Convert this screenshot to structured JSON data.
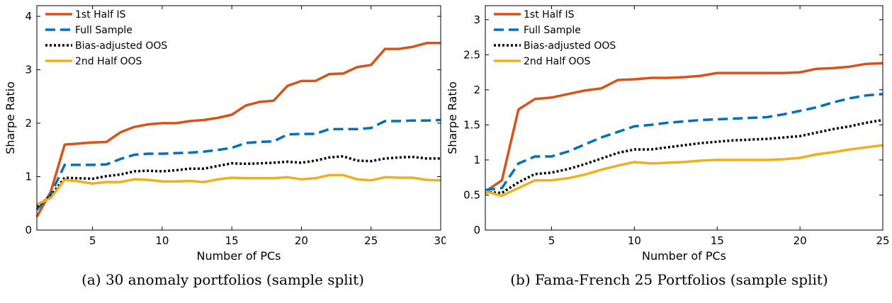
{
  "colors": {
    "first_half_is": "#D95319",
    "full_sample": "#0072BD",
    "bias_adjusted_oos": "#000000",
    "second_half_oos": "#EDB120"
  },
  "chart_data": [
    {
      "type": "line",
      "caption": "(a) 30 anomaly portfolios (sample split)",
      "xlabel": "Number of PCs",
      "ylabel": "Sharpe Ratio",
      "xlim": [
        1,
        30
      ],
      "ylim": [
        0,
        4.2
      ],
      "xticks": [
        5,
        10,
        15,
        20,
        25,
        30
      ],
      "yticks": [
        0,
        1,
        2,
        3,
        4
      ],
      "ytick_labels": [
        "0",
        "1",
        "2",
        "3",
        "4"
      ],
      "legend_position": "top-left",
      "grid": false,
      "x": [
        1,
        2,
        3,
        4,
        5,
        6,
        7,
        8,
        9,
        10,
        11,
        12,
        13,
        14,
        15,
        16,
        17,
        18,
        19,
        20,
        21,
        22,
        23,
        24,
        25,
        26,
        27,
        28,
        29,
        30
      ],
      "series": [
        {
          "name": "1st Half IS",
          "style": "solid",
          "color_key": "first_half_is",
          "values": [
            0.25,
            0.72,
            1.6,
            1.62,
            1.64,
            1.65,
            1.83,
            1.93,
            1.98,
            2.0,
            2.0,
            2.04,
            2.06,
            2.1,
            2.16,
            2.33,
            2.4,
            2.42,
            2.7,
            2.79,
            2.79,
            2.92,
            2.93,
            3.05,
            3.09,
            3.39,
            3.39,
            3.43,
            3.5,
            3.5
          ]
        },
        {
          "name": "Full Sample",
          "style": "dashed",
          "color_key": "full_sample",
          "values": [
            0.38,
            0.67,
            1.22,
            1.22,
            1.22,
            1.23,
            1.33,
            1.41,
            1.43,
            1.43,
            1.44,
            1.45,
            1.47,
            1.5,
            1.54,
            1.63,
            1.65,
            1.66,
            1.79,
            1.8,
            1.8,
            1.89,
            1.89,
            1.89,
            1.91,
            2.04,
            2.04,
            2.05,
            2.05,
            2.06
          ]
        },
        {
          "name": "Bias-adjusted OOS",
          "style": "dotted",
          "color_key": "bias_adjusted_oos",
          "values": [
            0.44,
            0.64,
            0.98,
            0.97,
            0.96,
            1.01,
            1.04,
            1.1,
            1.11,
            1.1,
            1.12,
            1.15,
            1.15,
            1.2,
            1.25,
            1.24,
            1.25,
            1.26,
            1.28,
            1.26,
            1.3,
            1.36,
            1.38,
            1.3,
            1.29,
            1.34,
            1.36,
            1.37,
            1.34,
            1.34
          ]
        },
        {
          "name": "2nd Half OOS",
          "style": "solid",
          "color_key": "second_half_oos",
          "values": [
            0.48,
            0.6,
            0.94,
            0.91,
            0.87,
            0.9,
            0.9,
            0.95,
            0.94,
            0.91,
            0.91,
            0.92,
            0.9,
            0.95,
            0.98,
            0.97,
            0.97,
            0.97,
            0.99,
            0.95,
            0.97,
            1.03,
            1.03,
            0.95,
            0.93,
            0.99,
            0.98,
            0.98,
            0.94,
            0.93
          ]
        }
      ]
    },
    {
      "type": "line",
      "caption": "(b) Fama-French 25 Portfolios (sample split)",
      "xlabel": "Number of PCs",
      "ylabel": "Sharpe Ratio",
      "xlim": [
        1,
        25
      ],
      "ylim": [
        0,
        3.2
      ],
      "xticks": [
        5,
        10,
        15,
        20,
        25
      ],
      "yticks": [
        0,
        0.5,
        1,
        1.5,
        2,
        2.5,
        3
      ],
      "ytick_labels": [
        "0",
        "0.5",
        "1",
        "1.5",
        "2",
        "2.5",
        "3"
      ],
      "legend_position": "top-left",
      "grid": false,
      "x": [
        1,
        2,
        3,
        4,
        5,
        6,
        7,
        8,
        9,
        10,
        11,
        12,
        13,
        14,
        15,
        16,
        17,
        18,
        19,
        20,
        21,
        22,
        23,
        24,
        25
      ],
      "series": [
        {
          "name": "1st Half IS",
          "style": "solid",
          "color_key": "first_half_is",
          "values": [
            0.55,
            0.71,
            1.72,
            1.87,
            1.89,
            1.94,
            1.99,
            2.02,
            2.14,
            2.15,
            2.17,
            2.17,
            2.18,
            2.2,
            2.24,
            2.24,
            2.24,
            2.24,
            2.24,
            2.25,
            2.3,
            2.31,
            2.33,
            2.37,
            2.38
          ]
        },
        {
          "name": "Full Sample",
          "style": "dashed",
          "color_key": "full_sample",
          "values": [
            0.57,
            0.6,
            0.95,
            1.05,
            1.05,
            1.12,
            1.22,
            1.32,
            1.4,
            1.48,
            1.5,
            1.53,
            1.55,
            1.57,
            1.58,
            1.59,
            1.6,
            1.61,
            1.65,
            1.7,
            1.75,
            1.82,
            1.88,
            1.92,
            1.94
          ]
        },
        {
          "name": "Bias-adjusted OOS",
          "style": "dotted",
          "color_key": "bias_adjusted_oos",
          "values": [
            0.54,
            0.53,
            0.68,
            0.8,
            0.82,
            0.87,
            0.94,
            1.02,
            1.1,
            1.15,
            1.15,
            1.18,
            1.21,
            1.24,
            1.26,
            1.28,
            1.29,
            1.3,
            1.32,
            1.34,
            1.39,
            1.44,
            1.48,
            1.53,
            1.57
          ]
        },
        {
          "name": "2nd Half OOS",
          "style": "solid",
          "color_key": "second_half_oos",
          "values": [
            0.55,
            0.49,
            0.6,
            0.71,
            0.71,
            0.74,
            0.79,
            0.86,
            0.92,
            0.97,
            0.95,
            0.96,
            0.97,
            0.99,
            1.0,
            1.0,
            1.0,
            1.0,
            1.01,
            1.03,
            1.08,
            1.11,
            1.15,
            1.18,
            1.21
          ]
        }
      ]
    }
  ]
}
